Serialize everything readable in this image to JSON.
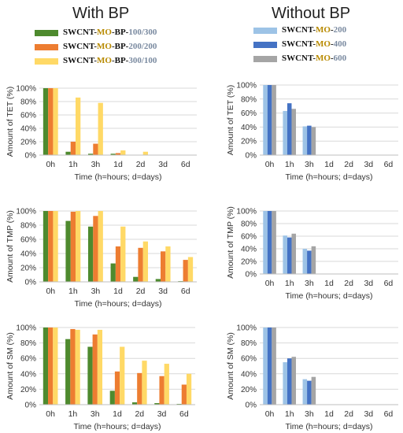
{
  "titles": {
    "left": "With BP",
    "right": "Without BP"
  },
  "legend_left": [
    {
      "a": "SWCNT-",
      "b": "MO",
      "c": "-BP-",
      "d": "100/300",
      "color": "#4e8a2e"
    },
    {
      "a": "SWCNT-",
      "b": "MO",
      "c": "-BP-",
      "d": "200/200",
      "color": "#ed7d31"
    },
    {
      "a": "SWCNT-",
      "b": "MO",
      "c": "-BP-",
      "d": "300/100",
      "color": "#ffd966"
    }
  ],
  "legend_right": [
    {
      "a": "SWCNT-",
      "b": "MO",
      "c": "-",
      "d": "200",
      "color": "#9dc3e6"
    },
    {
      "a": "SWCNT-",
      "b": "MO",
      "c": "-",
      "d": "400",
      "color": "#4472c4"
    },
    {
      "a": "SWCNT-",
      "b": "MO",
      "c": "-",
      "d": "600",
      "color": "#a5a5a5"
    }
  ],
  "chart_data": [
    {
      "type": "bar",
      "panel": "with-bp-tet",
      "categories": [
        "0h",
        "1h",
        "3h",
        "1d",
        "2d",
        "3d",
        "6d"
      ],
      "series": [
        {
          "values": [
            100,
            5,
            2,
            2,
            0,
            0,
            0
          ],
          "color": "#4e8a2e"
        },
        {
          "values": [
            100,
            20,
            17,
            3,
            0,
            0,
            0
          ],
          "color": "#ed7d31"
        },
        {
          "values": [
            100,
            86,
            78,
            7,
            5,
            0,
            0
          ],
          "color": "#ffd966"
        }
      ],
      "xlabel": "Time (h=hours; d=days)",
      "ylabel": "Amount of TET (%)",
      "ylim": [
        0,
        100
      ],
      "yticks": [
        "0%",
        "20%",
        "40%",
        "60%",
        "80%",
        "100%"
      ],
      "grid": true
    },
    {
      "type": "bar",
      "panel": "without-bp-tet",
      "categories": [
        "0h",
        "1h",
        "3h",
        "1d",
        "2d",
        "3d",
        "6d"
      ],
      "series": [
        {
          "values": [
            100,
            63,
            41,
            0,
            0,
            0,
            0
          ],
          "color": "#9dc3e6"
        },
        {
          "values": [
            100,
            74,
            42,
            0,
            0,
            0,
            0
          ],
          "color": "#4472c4"
        },
        {
          "values": [
            100,
            66,
            40,
            0,
            0,
            0,
            0
          ],
          "color": "#a5a5a5"
        }
      ],
      "xlabel": "Time (h=hours; d=days)",
      "ylabel": "Amount of TET (%)",
      "ylim": [
        0,
        100
      ],
      "yticks": [
        "0%",
        "20%",
        "40%",
        "60%",
        "80%",
        "100%"
      ],
      "grid": true
    },
    {
      "type": "bar",
      "panel": "with-bp-tmp",
      "categories": [
        "0h",
        "1h",
        "3h",
        "1d",
        "2d",
        "3d",
        "6d"
      ],
      "series": [
        {
          "values": [
            100,
            86,
            78,
            26,
            7,
            4,
            1
          ],
          "color": "#4e8a2e"
        },
        {
          "values": [
            100,
            99,
            93,
            50,
            48,
            43,
            31
          ],
          "color": "#ed7d31"
        },
        {
          "values": [
            100,
            100,
            100,
            78,
            57,
            50,
            35
          ],
          "color": "#ffd966"
        }
      ],
      "xlabel": "Time (h=hours; d=days)",
      "ylabel": "Amount  of TMP (%)",
      "ylim": [
        0,
        100
      ],
      "yticks": [
        "0%",
        "20%",
        "40%",
        "60%",
        "80%",
        "100%"
      ],
      "grid": true
    },
    {
      "type": "bar",
      "panel": "without-bp-tmp",
      "categories": [
        "0h",
        "1h",
        "3h",
        "1d",
        "2d",
        "3d",
        "6d"
      ],
      "series": [
        {
          "values": [
            100,
            61,
            40,
            0,
            0,
            0,
            0
          ],
          "color": "#9dc3e6"
        },
        {
          "values": [
            100,
            58,
            37,
            0,
            0,
            0,
            0
          ],
          "color": "#4472c4"
        },
        {
          "values": [
            100,
            64,
            44,
            0,
            0,
            0,
            0
          ],
          "color": "#a5a5a5"
        }
      ],
      "xlabel": "Time (h=hours; d=days)",
      "ylabel": "Amount of TMP (%)",
      "ylim": [
        0,
        100
      ],
      "yticks": [
        "0%",
        "20%",
        "40%",
        "60%",
        "80%",
        "100%"
      ],
      "grid": true
    },
    {
      "type": "bar",
      "panel": "with-bp-sm",
      "categories": [
        "0h",
        "1h",
        "3h",
        "1d",
        "2d",
        "3d",
        "6d"
      ],
      "series": [
        {
          "values": [
            100,
            85,
            75,
            18,
            3,
            2,
            1
          ],
          "color": "#4e8a2e"
        },
        {
          "values": [
            100,
            98,
            91,
            43,
            41,
            37,
            26
          ],
          "color": "#ed7d31"
        },
        {
          "values": [
            100,
            97,
            97,
            75,
            57,
            53,
            40
          ],
          "color": "#ffd966"
        }
      ],
      "xlabel": "Time (h=hours; d=days)",
      "ylabel": "Amount of SM (%)",
      "ylim": [
        0,
        100
      ],
      "yticks": [
        "0%",
        "20%",
        "40%",
        "60%",
        "80%",
        "100%"
      ],
      "grid": true
    },
    {
      "type": "bar",
      "panel": "without-bp-sm",
      "categories": [
        "0h",
        "1h",
        "3h",
        "1d",
        "2d",
        "3d",
        "6d"
      ],
      "series": [
        {
          "values": [
            100,
            55,
            33,
            0,
            0,
            0,
            0
          ],
          "color": "#9dc3e6"
        },
        {
          "values": [
            100,
            60,
            31,
            0,
            0,
            0,
            0
          ],
          "color": "#4472c4"
        },
        {
          "values": [
            100,
            62,
            36,
            0,
            0,
            0,
            0
          ],
          "color": "#a5a5a5"
        }
      ],
      "xlabel": "Time (h=hours; d=days)",
      "ylabel": "Amount of SM (%)",
      "ylim": [
        0,
        100
      ],
      "yticks": [
        "0%",
        "20%",
        "40%",
        "60%",
        "80%",
        "100%"
      ],
      "grid": true
    }
  ]
}
